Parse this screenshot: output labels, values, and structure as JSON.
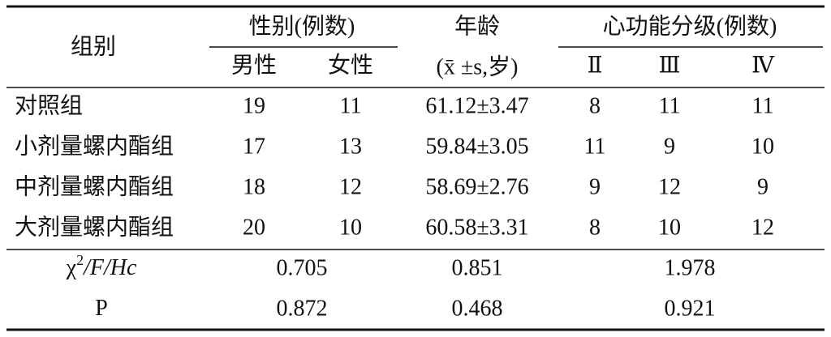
{
  "header": {
    "group": "组别",
    "sex": "性别(例数)",
    "male": "男性",
    "female": "女性",
    "age": "年龄",
    "age_unit": "(x̄ ±s,岁)",
    "cardiac": "心功能分级(例数)",
    "grades": [
      "Ⅱ",
      "Ⅲ",
      "Ⅳ"
    ]
  },
  "rows": [
    [
      "对照组",
      19,
      11,
      "61.12±3.47",
      8,
      11,
      11
    ],
    [
      "小剂量螺内酯组",
      17,
      13,
      "59.84±3.05",
      11,
      9,
      10
    ],
    [
      "中剂量螺内酯组",
      18,
      12,
      "58.69±2.76",
      9,
      12,
      9
    ],
    [
      "大剂量螺内酯组",
      20,
      10,
      "60.58±3.31",
      8,
      10,
      12
    ]
  ],
  "stats": [
    {
      "symbol": "χ",
      "sup": "2",
      "rest": "/F/Hc",
      "values": [
        "0.705",
        "0.851",
        "1.978"
      ]
    },
    {
      "symbol": "P",
      "values": [
        "0.872",
        "0.468",
        "0.921"
      ]
    }
  ]
}
